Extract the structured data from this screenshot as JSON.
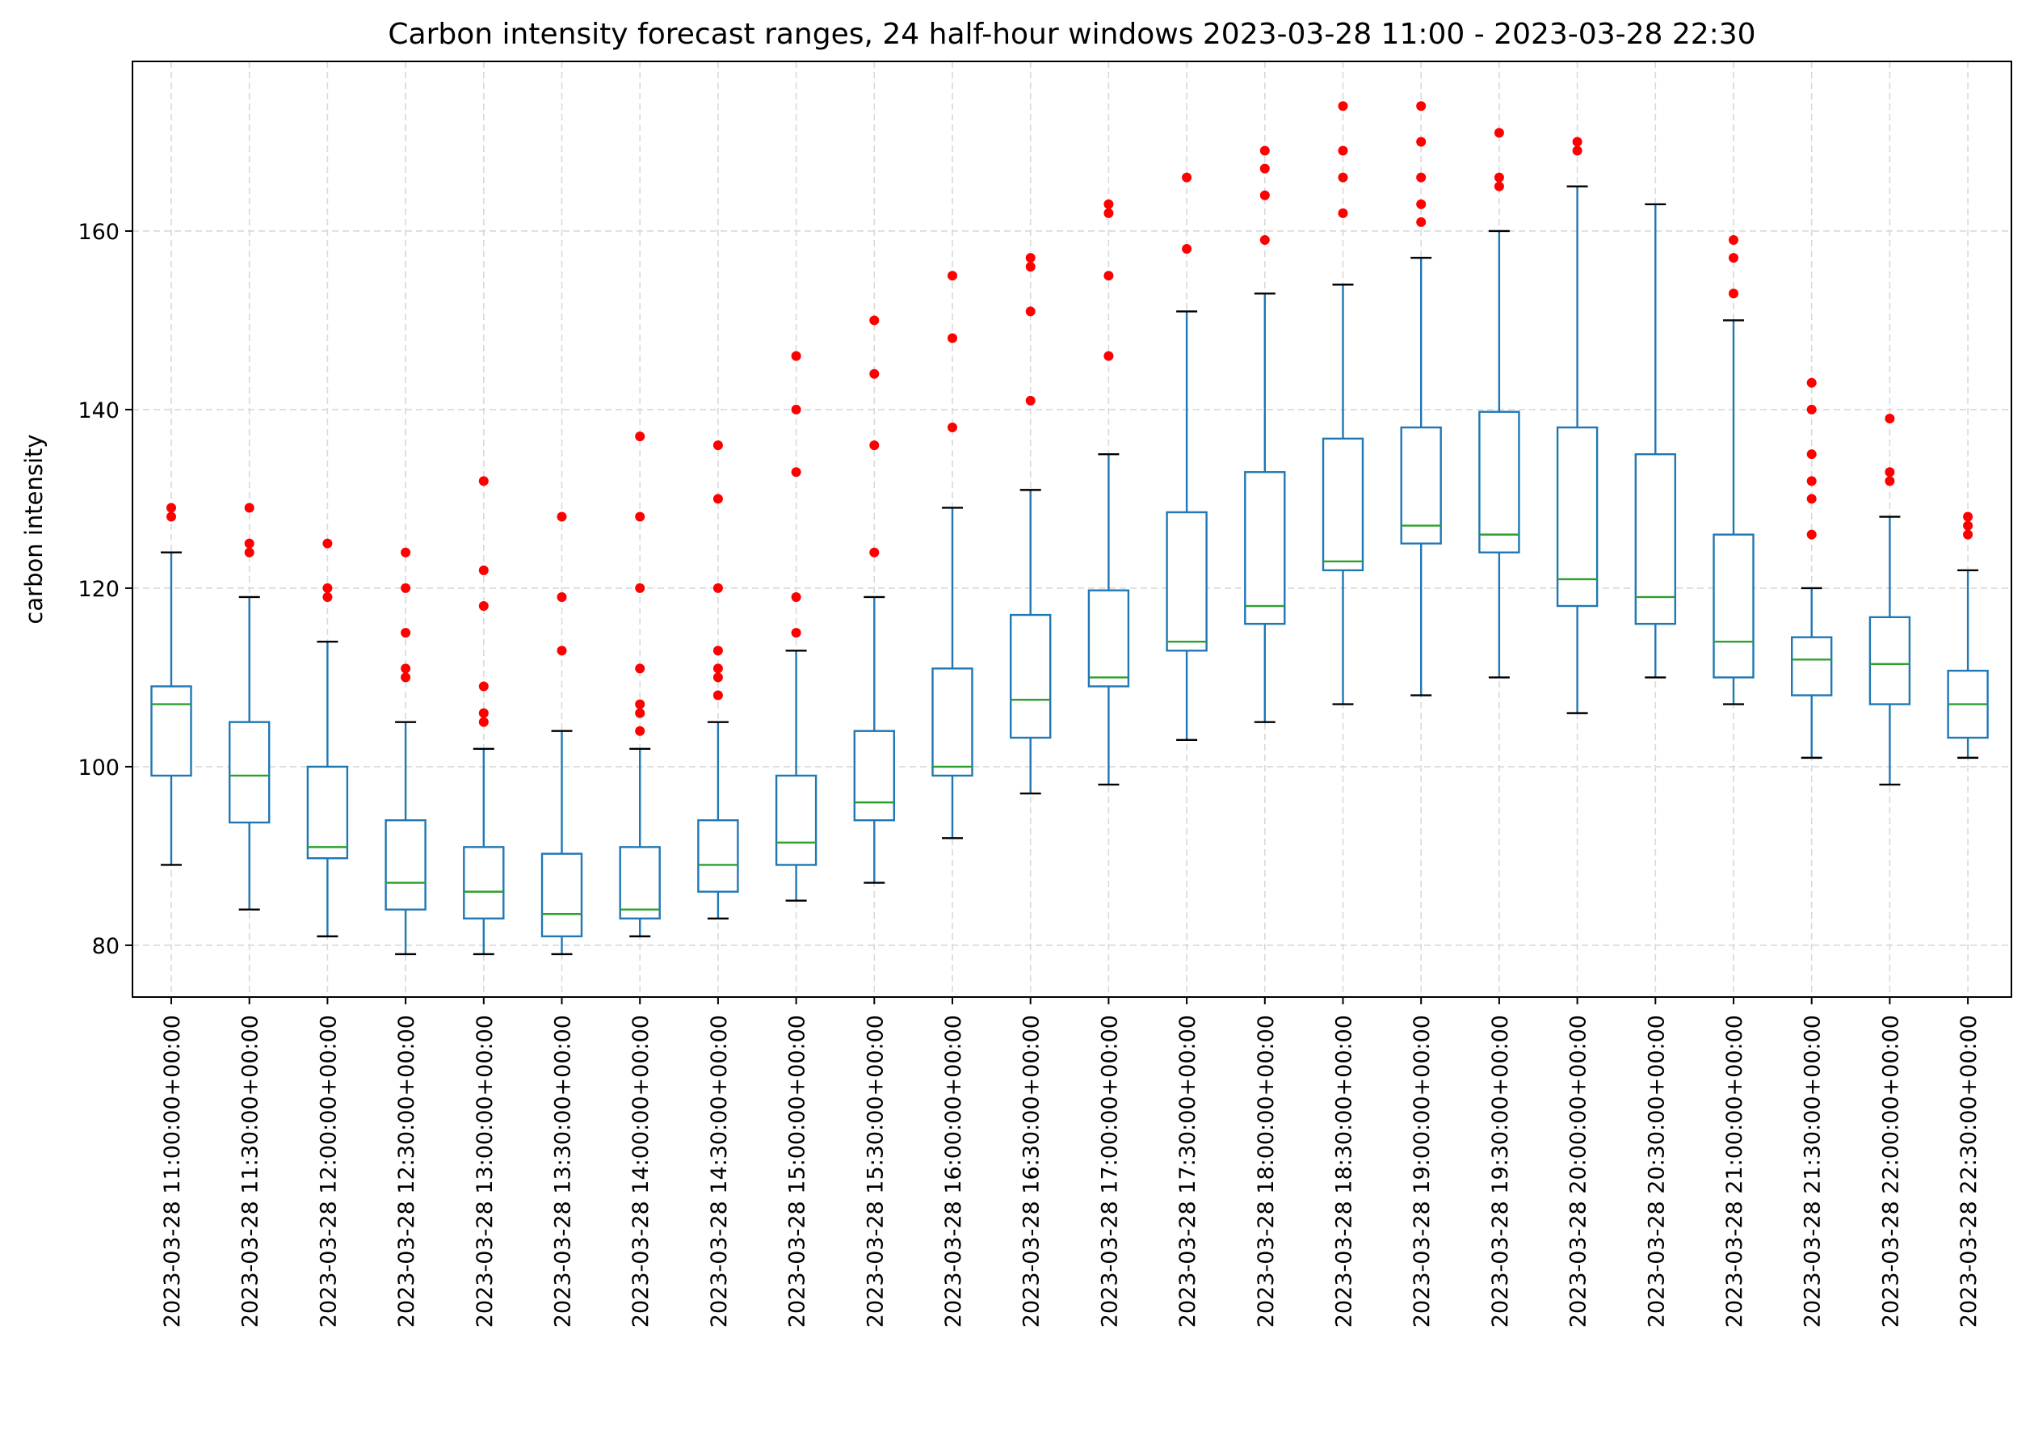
{
  "chart_data": {
    "type": "box",
    "title": "Carbon intensity forecast ranges, 24 half-hour windows 2023-03-28 11:00 - 2023-03-28 22:30",
    "xlabel": "",
    "ylabel": "carbon intensity",
    "ylim": [
      74.2,
      179.0
    ],
    "yticks": [
      80,
      100,
      120,
      140,
      160
    ],
    "grid": true,
    "legend": "none",
    "colors": {
      "box": "#1f77b4",
      "median": "#2ca02c",
      "whisker": "#1f77b4",
      "cap": "#000000",
      "outlier": "#ff0000",
      "grid": "#d9d9d9"
    },
    "categories": [
      "2023-03-28 11:00:00+00:00",
      "2023-03-28 11:30:00+00:00",
      "2023-03-28 12:00:00+00:00",
      "2023-03-28 12:30:00+00:00",
      "2023-03-28 13:00:00+00:00",
      "2023-03-28 13:30:00+00:00",
      "2023-03-28 14:00:00+00:00",
      "2023-03-28 14:30:00+00:00",
      "2023-03-28 15:00:00+00:00",
      "2023-03-28 15:30:00+00:00",
      "2023-03-28 16:00:00+00:00",
      "2023-03-28 16:30:00+00:00",
      "2023-03-28 17:00:00+00:00",
      "2023-03-28 17:30:00+00:00",
      "2023-03-28 18:00:00+00:00",
      "2023-03-28 18:30:00+00:00",
      "2023-03-28 19:00:00+00:00",
      "2023-03-28 19:30:00+00:00",
      "2023-03-28 20:00:00+00:00",
      "2023-03-28 20:30:00+00:00",
      "2023-03-28 21:00:00+00:00",
      "2023-03-28 21:30:00+00:00",
      "2023-03-28 22:00:00+00:00",
      "2023-03-28 22:30:00+00:00"
    ],
    "boxes": [
      {
        "whislo": 89,
        "q1": 99,
        "med": 107,
        "q3": 109,
        "whishi": 124,
        "fliers": [
          128,
          129
        ]
      },
      {
        "whislo": 84,
        "q1": 93.75,
        "med": 99,
        "q3": 105,
        "whishi": 119,
        "fliers": [
          124,
          125,
          129
        ]
      },
      {
        "whislo": 81,
        "q1": 89.75,
        "med": 91,
        "q3": 100,
        "whishi": 114,
        "fliers": [
          119,
          120,
          125
        ]
      },
      {
        "whislo": 79,
        "q1": 84,
        "med": 87,
        "q3": 94,
        "whishi": 105,
        "fliers": [
          110,
          111,
          115,
          120,
          124
        ]
      },
      {
        "whislo": 79,
        "q1": 83,
        "med": 86,
        "q3": 91,
        "whishi": 102,
        "fliers": [
          105,
          106,
          109,
          118,
          122,
          132
        ]
      },
      {
        "whislo": 79,
        "q1": 81,
        "med": 83.5,
        "q3": 90.25,
        "whishi": 104,
        "fliers": [
          113,
          119,
          128
        ]
      },
      {
        "whislo": 81,
        "q1": 83,
        "med": 84,
        "q3": 91,
        "whishi": 102,
        "fliers": [
          104,
          106,
          107,
          111,
          120,
          128,
          137
        ]
      },
      {
        "whislo": 83,
        "q1": 86,
        "med": 89,
        "q3": 94,
        "whishi": 105,
        "fliers": [
          108,
          110,
          111,
          113,
          120,
          130,
          136
        ]
      },
      {
        "whislo": 85,
        "q1": 89,
        "med": 91.5,
        "q3": 99,
        "whishi": 113,
        "fliers": [
          115,
          119,
          133,
          140,
          146
        ]
      },
      {
        "whislo": 87,
        "q1": 94,
        "med": 96,
        "q3": 104,
        "whishi": 119,
        "fliers": [
          124,
          136,
          144,
          150
        ]
      },
      {
        "whislo": 92,
        "q1": 99,
        "med": 100,
        "q3": 111,
        "whishi": 129,
        "fliers": [
          138,
          148,
          155
        ]
      },
      {
        "whislo": 97,
        "q1": 103.25,
        "med": 107.5,
        "q3": 117,
        "whishi": 131,
        "fliers": [
          141,
          151,
          156,
          157
        ]
      },
      {
        "whislo": 98,
        "q1": 109,
        "med": 110,
        "q3": 119.75,
        "whishi": 135,
        "fliers": [
          146,
          155,
          162,
          163
        ]
      },
      {
        "whislo": 103,
        "q1": 113,
        "med": 114,
        "q3": 128.5,
        "whishi": 151,
        "fliers": [
          158,
          166
        ]
      },
      {
        "whislo": 105,
        "q1": 116,
        "med": 118,
        "q3": 133,
        "whishi": 153,
        "fliers": [
          159,
          164,
          167,
          169
        ]
      },
      {
        "whislo": 107,
        "q1": 122,
        "med": 123,
        "q3": 136.75,
        "whishi": 154,
        "fliers": [
          162,
          166,
          169,
          174
        ]
      },
      {
        "whislo": 108,
        "q1": 125,
        "med": 127,
        "q3": 138,
        "whishi": 157,
        "fliers": [
          161,
          163,
          166,
          170,
          174
        ]
      },
      {
        "whislo": 110,
        "q1": 124,
        "med": 126,
        "q3": 139.75,
        "whishi": 160,
        "fliers": [
          165,
          166,
          171
        ]
      },
      {
        "whislo": 106,
        "q1": 118,
        "med": 121,
        "q3": 138,
        "whishi": 165,
        "fliers": [
          169,
          170
        ]
      },
      {
        "whislo": 110,
        "q1": 116,
        "med": 119,
        "q3": 135,
        "whishi": 163,
        "fliers": []
      },
      {
        "whislo": 107,
        "q1": 110,
        "med": 114,
        "q3": 126,
        "whishi": 150,
        "fliers": [
          153,
          157,
          159
        ]
      },
      {
        "whislo": 101,
        "q1": 108,
        "med": 112,
        "q3": 114.5,
        "whishi": 120,
        "fliers": [
          126,
          130,
          132,
          135,
          140,
          143
        ]
      },
      {
        "whislo": 98,
        "q1": 107,
        "med": 111.5,
        "q3": 116.75,
        "whishi": 128,
        "fliers": [
          132,
          133,
          139
        ]
      },
      {
        "whislo": 101,
        "q1": 103.25,
        "med": 107,
        "q3": 110.75,
        "whishi": 122,
        "fliers": [
          126,
          127,
          128
        ]
      }
    ]
  }
}
